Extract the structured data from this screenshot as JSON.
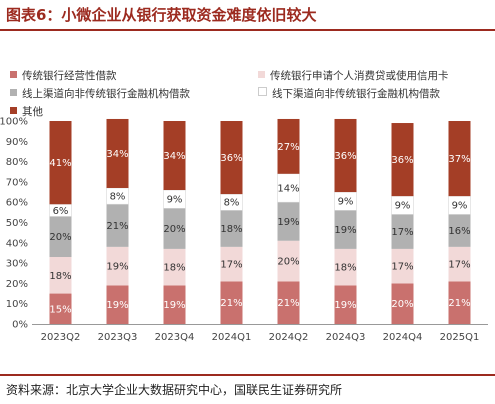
{
  "title": "图表6：小微企业从银行获取资金难度依旧较大",
  "source": "资料来源：北京大学企业大数据研究中心，国联民生证券研究所",
  "chart_data": {
    "type": "bar",
    "stacked": true,
    "categories": [
      "2023Q2",
      "2023Q3",
      "2023Q4",
      "2024Q1",
      "2024Q2",
      "2024Q3",
      "2024Q4",
      "2025Q1"
    ],
    "y_ticks": [
      "0%",
      "10%",
      "20%",
      "30%",
      "40%",
      "50%",
      "60%",
      "70%",
      "80%",
      "90%",
      "100%"
    ],
    "ylim": [
      0,
      100
    ],
    "legend_placement": "top",
    "series": [
      {
        "name": "传统银行经营性借款",
        "color": "#c9716e",
        "values": [
          15,
          19,
          19,
          21,
          21,
          19,
          20,
          21
        ]
      },
      {
        "name": "传统银行申请个人消费贷或使用信用卡",
        "color": "#f2d9d8",
        "values": [
          18,
          19,
          18,
          17,
          20,
          18,
          17,
          17
        ]
      },
      {
        "name": "线上渠道向非传统银行金融机构借款",
        "color": "#b1b1b1",
        "values": [
          20,
          21,
          20,
          18,
          19,
          19,
          17,
          16
        ]
      },
      {
        "name": "线下渠道向非传统银行金融机构借款",
        "color": "#ffffff",
        "values": [
          6,
          8,
          9,
          8,
          14,
          9,
          9,
          9
        ]
      },
      {
        "name": "其他",
        "color": "#a43e26",
        "values": [
          41,
          34,
          34,
          36,
          27,
          36,
          36,
          37
        ]
      }
    ]
  }
}
